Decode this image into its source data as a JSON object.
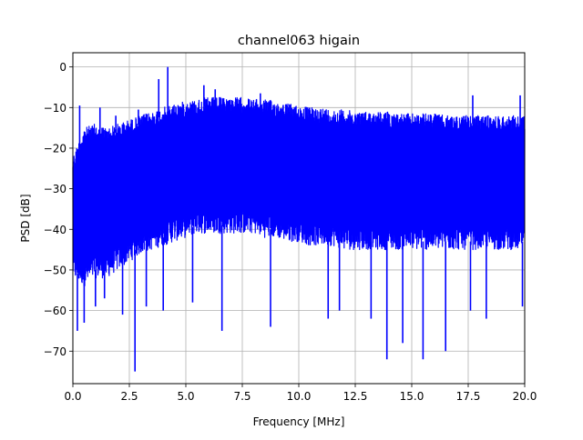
{
  "chart_data": {
    "type": "line",
    "title": "channel063 higain",
    "xlabel": "Frequency [MHz]",
    "ylabel": "PSD [dB]",
    "xlim": [
      0,
      20
    ],
    "ylim": [
      -78,
      3.5
    ],
    "x_ticks": [
      0,
      2.5,
      5,
      7.5,
      10,
      12.5,
      15,
      17.5,
      20
    ],
    "x_tick_labels": [
      "0.0",
      "2.5",
      "5.0",
      "7.5",
      "10.0",
      "12.5",
      "15.0",
      "17.5",
      "20.0"
    ],
    "y_ticks": [
      0,
      -10,
      -20,
      -30,
      -40,
      -50,
      -60,
      -70
    ],
    "y_tick_labels": [
      "0",
      "−10",
      "−20",
      "−30",
      "−40",
      "−50",
      "−60",
      "−70"
    ],
    "grid": true,
    "series": [
      {
        "color": "#0000ff",
        "x": [
          0.0,
          0.5,
          1.0,
          1.5,
          2.0,
          2.5,
          3.0,
          3.5,
          4.0,
          4.5,
          5.0,
          5.5,
          6.0,
          6.5,
          7.0,
          7.5,
          8.0,
          8.5,
          9.0,
          9.5,
          10.0,
          10.5,
          11.0,
          11.5,
          12.0,
          12.5,
          13.0,
          13.5,
          14.0,
          14.5,
          15.0,
          15.5,
          16.0,
          16.5,
          17.0,
          17.5,
          18.0,
          18.5,
          19.0,
          19.5,
          20.0
        ],
        "upper": [
          -22,
          -15,
          -14,
          -15,
          -14,
          -13,
          -12,
          -11,
          -10,
          -9,
          -8.5,
          -8,
          -7.5,
          -7.5,
          -7.5,
          -7.5,
          -8,
          -8,
          -8.5,
          -9,
          -9.5,
          -10,
          -10,
          -10.5,
          -10.5,
          -11,
          -11,
          -11,
          -11,
          -11.5,
          -11.5,
          -11.5,
          -11.5,
          -12,
          -12,
          -12,
          -12,
          -12,
          -12,
          -12,
          -12
        ],
        "lower": [
          -52,
          -54,
          -52,
          -52,
          -50,
          -48,
          -46,
          -45,
          -44,
          -43,
          -42,
          -41,
          -41,
          -41,
          -41,
          -41,
          -41,
          -42,
          -42,
          -43,
          -43,
          -44,
          -44,
          -44,
          -45,
          -45,
          -45,
          -45,
          -45,
          -45,
          -45,
          -45,
          -45,
          -45,
          -45,
          -45,
          -45,
          -45,
          -45,
          -45,
          -45
        ],
        "peaks": [
          {
            "x": 0.05,
            "y": -24
          },
          {
            "x": 0.3,
            "y": -9.5
          },
          {
            "x": 0.85,
            "y": -17
          },
          {
            "x": 1.2,
            "y": -10
          },
          {
            "x": 1.9,
            "y": -12
          },
          {
            "x": 2.9,
            "y": -10.5
          },
          {
            "x": 3.8,
            "y": -3
          },
          {
            "x": 4.0,
            "y": -12
          },
          {
            "x": 4.2,
            "y": 0
          },
          {
            "x": 5.8,
            "y": -4.5
          },
          {
            "x": 6.3,
            "y": -5.5
          },
          {
            "x": 8.3,
            "y": -6.5
          },
          {
            "x": 17.7,
            "y": -7
          },
          {
            "x": 19.8,
            "y": -7
          }
        ],
        "dips": [
          {
            "x": 0.2,
            "y": -65
          },
          {
            "x": 0.5,
            "y": -63
          },
          {
            "x": 1.0,
            "y": -59
          },
          {
            "x": 1.4,
            "y": -57
          },
          {
            "x": 2.2,
            "y": -61
          },
          {
            "x": 2.75,
            "y": -75
          },
          {
            "x": 3.25,
            "y": -59
          },
          {
            "x": 4.0,
            "y": -60
          },
          {
            "x": 5.3,
            "y": -58
          },
          {
            "x": 6.6,
            "y": -65
          },
          {
            "x": 8.75,
            "y": -64
          },
          {
            "x": 11.3,
            "y": -62
          },
          {
            "x": 11.8,
            "y": -60
          },
          {
            "x": 13.2,
            "y": -62
          },
          {
            "x": 13.9,
            "y": -72
          },
          {
            "x": 14.6,
            "y": -68
          },
          {
            "x": 15.5,
            "y": -72
          },
          {
            "x": 16.5,
            "y": -70
          },
          {
            "x": 17.6,
            "y": -60
          },
          {
            "x": 18.3,
            "y": -62
          },
          {
            "x": 19.9,
            "y": -59
          }
        ]
      }
    ]
  }
}
